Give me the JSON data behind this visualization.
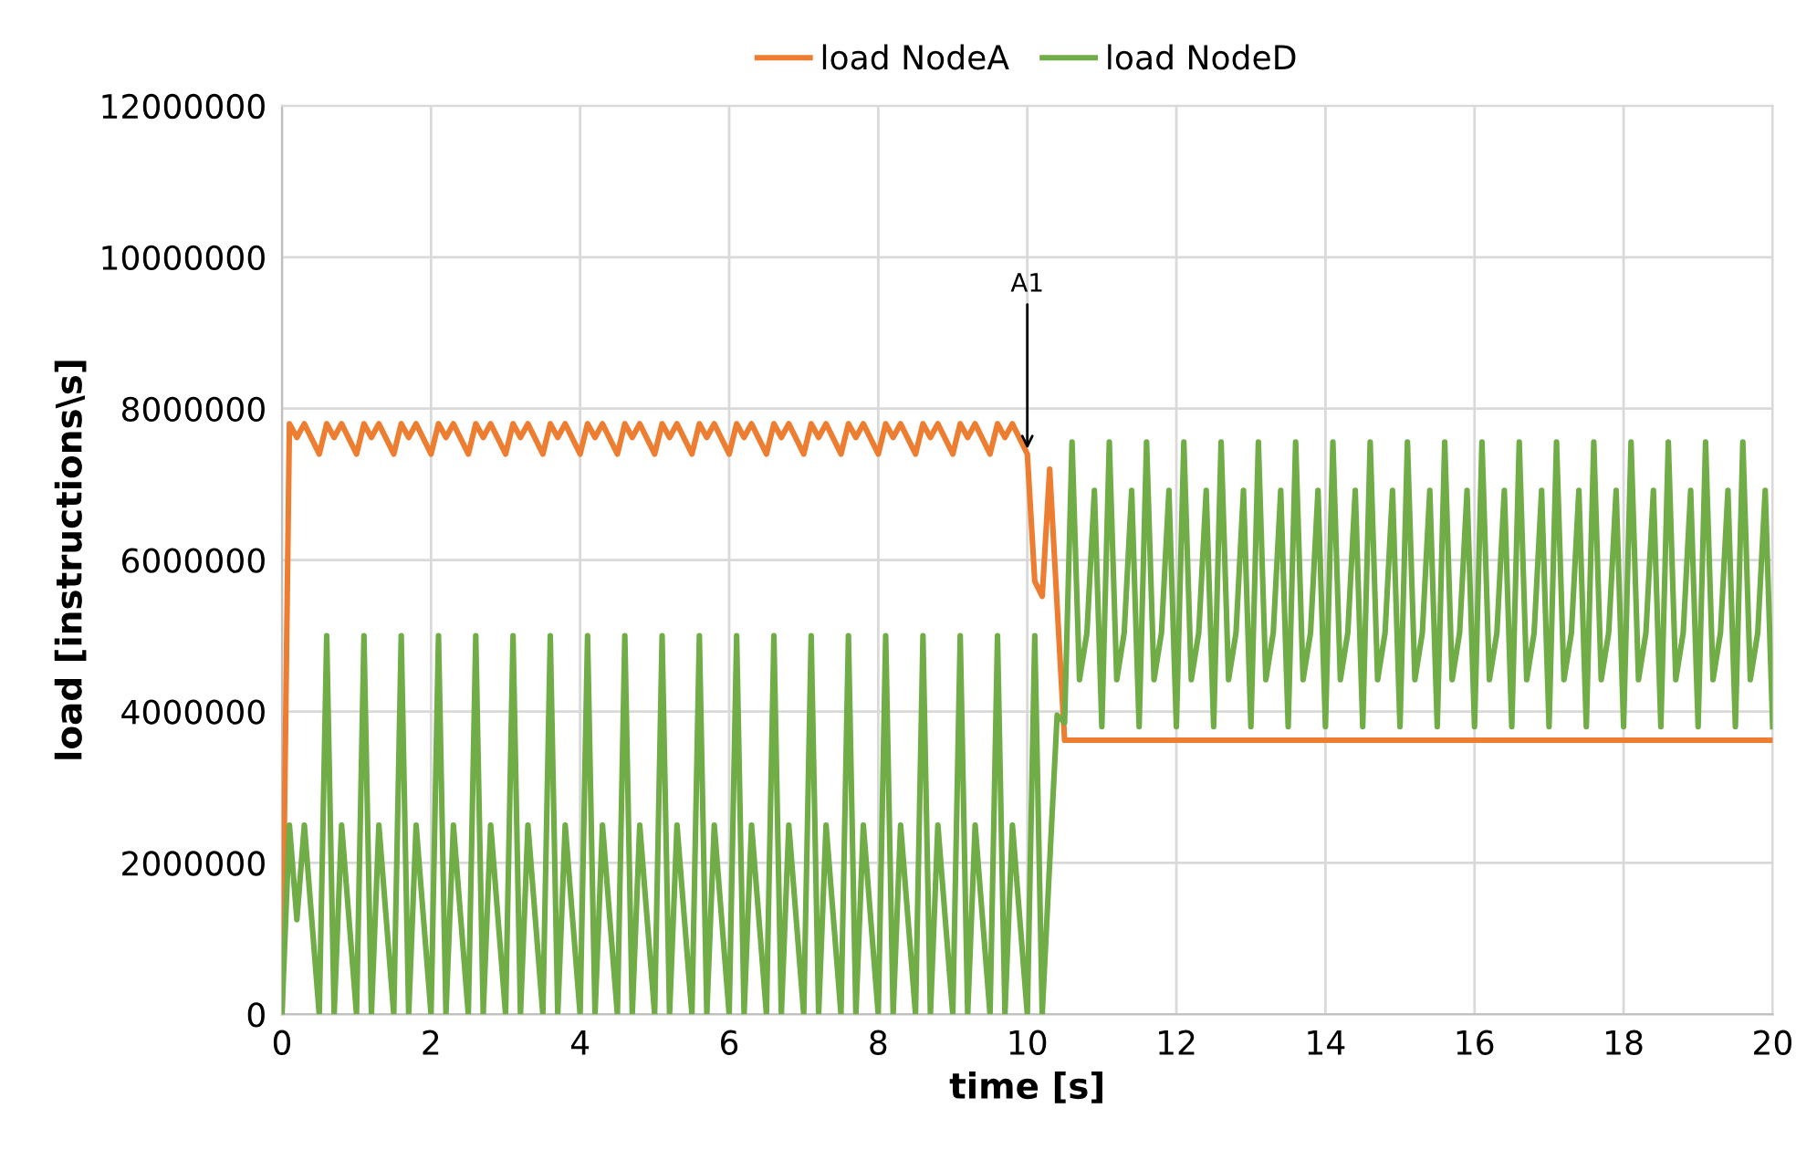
{
  "chart_data": {
    "type": "line",
    "xlabel": "time [s]",
    "ylabel": "load [instructions\\s]",
    "x": [
      0,
      0.1,
      0.2,
      0.3,
      0.4,
      0.5,
      0.6,
      0.7,
      0.8,
      0.9,
      1,
      1.1,
      1.2,
      1.3,
      1.4,
      1.5,
      1.6,
      1.7,
      1.8,
      1.9,
      2,
      2.1,
      2.2,
      2.3,
      2.4,
      2.5,
      2.6,
      2.7,
      2.8,
      2.9,
      3,
      3.1,
      3.2,
      3.3,
      3.4,
      3.5,
      3.6,
      3.7,
      3.8,
      3.9,
      4,
      4.1,
      4.2,
      4.3,
      4.4,
      4.5,
      4.6,
      4.7,
      4.8,
      4.9,
      5,
      5.1,
      5.2,
      5.3,
      5.4,
      5.5,
      5.6,
      5.7,
      5.8,
      5.9,
      6,
      6.1,
      6.2,
      6.3,
      6.4,
      6.5,
      6.6,
      6.7,
      6.8,
      6.9,
      7,
      7.1,
      7.2,
      7.3,
      7.4,
      7.5,
      7.6,
      7.7,
      7.8,
      7.9,
      8,
      8.1,
      8.2,
      8.3,
      8.4,
      8.5,
      8.6,
      8.7,
      8.8,
      8.9,
      9,
      9.1,
      9.2,
      9.3,
      9.4,
      9.5,
      9.6,
      9.7,
      9.8,
      9.9,
      10,
      10.1,
      10.2,
      10.3,
      10.4,
      10.5,
      10.6,
      10.7,
      10.8,
      10.9,
      11,
      11.1,
      11.2,
      11.3,
      11.4,
      11.5,
      11.6,
      11.7,
      11.8,
      11.9,
      12,
      12.1,
      12.2,
      12.3,
      12.4,
      12.5,
      12.6,
      12.7,
      12.8,
      12.9,
      13,
      13.1,
      13.2,
      13.3,
      13.4,
      13.5,
      13.6,
      13.7,
      13.8,
      13.9,
      14,
      14.1,
      14.2,
      14.3,
      14.4,
      14.5,
      14.6,
      14.7,
      14.8,
      14.9,
      15,
      15.1,
      15.2,
      15.3,
      15.4,
      15.5,
      15.6,
      15.7,
      15.8,
      15.9,
      16,
      16.1,
      16.2,
      16.3,
      16.4,
      16.5,
      16.6,
      16.7,
      16.8,
      16.9,
      17,
      17.1,
      17.2,
      17.3,
      17.4,
      17.5,
      17.6,
      17.7,
      17.8,
      17.9,
      18,
      18.1,
      18.2,
      18.3,
      18.4,
      18.5,
      18.6,
      18.7,
      18.8,
      18.9,
      19,
      19.1,
      19.2,
      19.3,
      19.4,
      19.5,
      19.6,
      19.7,
      19.8,
      19.9,
      20
    ],
    "series": [
      {
        "name": "load NodeA",
        "color": "#ed7d31",
        "values": [
          0,
          7800000,
          7620000,
          7800000,
          7600000,
          7400000,
          7800000,
          7620000,
          7800000,
          7600000,
          7400000,
          7800000,
          7620000,
          7800000,
          7600000,
          7400000,
          7800000,
          7620000,
          7800000,
          7600000,
          7400000,
          7800000,
          7620000,
          7800000,
          7600000,
          7400000,
          7800000,
          7620000,
          7800000,
          7600000,
          7400000,
          7800000,
          7620000,
          7800000,
          7600000,
          7400000,
          7800000,
          7620000,
          7800000,
          7600000,
          7400000,
          7800000,
          7620000,
          7800000,
          7600000,
          7400000,
          7800000,
          7620000,
          7800000,
          7600000,
          7400000,
          7800000,
          7620000,
          7800000,
          7600000,
          7400000,
          7800000,
          7620000,
          7800000,
          7600000,
          7400000,
          7800000,
          7620000,
          7800000,
          7600000,
          7400000,
          7800000,
          7620000,
          7800000,
          7600000,
          7400000,
          7800000,
          7620000,
          7800000,
          7600000,
          7400000,
          7800000,
          7620000,
          7800000,
          7600000,
          7400000,
          7800000,
          7620000,
          7800000,
          7600000,
          7400000,
          7800000,
          7620000,
          7800000,
          7600000,
          7400000,
          7800000,
          7620000,
          7800000,
          7600000,
          7400000,
          7800000,
          7620000,
          7800000,
          7600000,
          7400000,
          5720000,
          5520000,
          7200000,
          5400000,
          3620000,
          3620000,
          3620000,
          3620000,
          3620000,
          3620000,
          3620000,
          3620000,
          3620000,
          3620000,
          3620000,
          3620000,
          3620000,
          3620000,
          3620000,
          3620000,
          3620000,
          3620000,
          3620000,
          3620000,
          3620000,
          3620000,
          3620000,
          3620000,
          3620000,
          3620000,
          3620000,
          3620000,
          3620000,
          3620000,
          3620000,
          3620000,
          3620000,
          3620000,
          3620000,
          3620000,
          3620000,
          3620000,
          3620000,
          3620000,
          3620000,
          3620000,
          3620000,
          3620000,
          3620000,
          3620000,
          3620000,
          3620000,
          3620000,
          3620000,
          3620000,
          3620000,
          3620000,
          3620000,
          3620000,
          3620000,
          3620000,
          3620000,
          3620000,
          3620000,
          3620000,
          3620000,
          3620000,
          3620000,
          3620000,
          3620000,
          3620000,
          3620000,
          3620000,
          3620000,
          3620000,
          3620000,
          3620000,
          3620000,
          3620000,
          3620000,
          3620000,
          3620000,
          3620000,
          3620000,
          3620000,
          3620000,
          3620000,
          3620000,
          3620000,
          3620000,
          3620000,
          3620000,
          3620000,
          3620000,
          3620000,
          3620000,
          3620000,
          3620000,
          3620000,
          3620000
        ]
      },
      {
        "name": "load NodeD",
        "color": "#70ad47",
        "values": [
          0,
          2500000,
          1250000,
          2500000,
          1250000,
          0,
          5000000,
          0,
          2500000,
          1250000,
          0,
          5000000,
          0,
          2500000,
          1250000,
          0,
          5000000,
          0,
          2500000,
          1250000,
          0,
          5000000,
          0,
          2500000,
          1250000,
          0,
          5000000,
          0,
          2500000,
          1250000,
          0,
          5000000,
          0,
          2500000,
          1250000,
          0,
          5000000,
          0,
          2500000,
          1250000,
          0,
          5000000,
          0,
          2500000,
          1250000,
          0,
          5000000,
          0,
          2500000,
          1250000,
          0,
          5000000,
          0,
          2500000,
          1250000,
          0,
          5000000,
          0,
          2500000,
          1250000,
          0,
          5000000,
          0,
          2500000,
          1250000,
          0,
          5000000,
          0,
          2500000,
          1250000,
          0,
          5000000,
          0,
          2500000,
          1250000,
          0,
          5000000,
          0,
          2500000,
          1250000,
          0,
          5000000,
          0,
          2500000,
          1250000,
          0,
          5000000,
          0,
          2500000,
          1250000,
          0,
          5000000,
          0,
          2500000,
          1250000,
          0,
          5000000,
          0,
          2500000,
          1250000,
          0,
          5000000,
          0,
          2000000,
          3950000,
          3850000,
          7560000,
          4420000,
          5040000,
          6920000,
          3800000,
          7560000,
          4420000,
          5040000,
          6920000,
          3800000,
          7560000,
          4420000,
          5040000,
          6920000,
          3800000,
          7560000,
          4420000,
          5040000,
          6920000,
          3800000,
          7560000,
          4420000,
          5040000,
          6920000,
          3800000,
          7560000,
          4420000,
          5040000,
          6920000,
          3800000,
          7560000,
          4420000,
          5040000,
          6920000,
          3800000,
          7560000,
          4420000,
          5040000,
          6920000,
          3800000,
          7560000,
          4420000,
          5040000,
          6920000,
          3800000,
          7560000,
          4420000,
          5040000,
          6920000,
          3800000,
          7560000,
          4420000,
          5040000,
          6920000,
          3800000,
          7560000,
          4420000,
          5040000,
          6920000,
          3800000,
          7560000,
          4420000,
          5040000,
          6920000,
          3800000,
          7560000,
          4420000,
          5040000,
          6920000,
          3800000,
          7560000,
          4420000,
          5040000,
          6920000,
          3800000,
          7560000,
          4420000,
          5040000,
          6920000,
          3800000,
          7560000,
          4420000,
          5040000,
          6920000,
          3800000,
          7560000,
          4420000,
          5040000,
          6920000,
          3800000,
          7560000,
          4420000,
          5040000,
          6920000,
          3800000
        ]
      }
    ],
    "xlim": [
      0,
      20
    ],
    "xticks": [
      0,
      2,
      4,
      6,
      8,
      10,
      12,
      14,
      16,
      18,
      20
    ],
    "ylim": [
      0,
      12000000
    ],
    "yticks": [
      0,
      2000000,
      4000000,
      6000000,
      8000000,
      10000000,
      12000000
    ],
    "grid": true,
    "legend": "top",
    "marker": "none",
    "line_style": "solid",
    "annotations": [
      {
        "text": "A1",
        "x": 10,
        "y": 7400000
      }
    ]
  }
}
